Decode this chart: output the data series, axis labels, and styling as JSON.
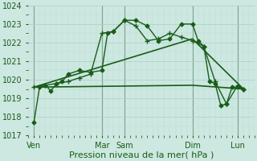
{
  "title": "",
  "xlabel": "Pression niveau de la mer( hPa )",
  "ylabel": "",
  "bg_color": "#cce8e0",
  "grid_major_color": "#aacfc8",
  "grid_minor_color": "#bbdbd4",
  "line_color": "#1a5c1a",
  "ylim": [
    1017,
    1024
  ],
  "yticks": [
    1017,
    1018,
    1019,
    1020,
    1021,
    1022,
    1023,
    1024
  ],
  "xlim": [
    0,
    20
  ],
  "xtick_positions": [
    0.5,
    6.5,
    8.5,
    14.5,
    18.5
  ],
  "xtick_labels": [
    "Ven",
    "Mar",
    "Sam",
    "Dim",
    "Lun"
  ],
  "vline_positions": [
    0.5,
    6.5,
    8.5,
    14.5,
    18.5
  ],
  "series0": {
    "x": [
      0.5,
      1.0,
      1.5,
      2.0,
      2.5,
      3.0,
      3.5,
      4.5,
      5.5,
      6.5,
      7.0,
      7.5,
      8.5,
      9.5,
      10.5,
      11.5,
      12.5,
      13.5,
      14.5,
      15.0,
      15.5,
      16.0,
      16.5,
      17.0,
      17.5,
      18.0,
      18.5,
      19.0
    ],
    "y": [
      1017.7,
      1019.6,
      1019.7,
      1019.4,
      1019.8,
      1019.9,
      1020.3,
      1020.5,
      1020.4,
      1020.5,
      1022.5,
      1022.6,
      1023.2,
      1023.2,
      1022.9,
      1022.1,
      1022.2,
      1023.0,
      1023.0,
      1022.1,
      1021.8,
      1019.9,
      1019.8,
      1018.6,
      1018.7,
      1019.6,
      1019.6,
      1019.5
    ],
    "marker": "D",
    "markersize": 2.5,
    "linewidth": 1.0
  },
  "series1": {
    "x": [
      0.5,
      1.5,
      2.5,
      3.5,
      4.5,
      5.5,
      6.5,
      7.5,
      8.5,
      9.5,
      10.5,
      11.5,
      12.5,
      13.5,
      14.5,
      15.5,
      16.5,
      17.5,
      18.5,
      19.0
    ],
    "y": [
      1019.6,
      1019.7,
      1019.8,
      1019.9,
      1020.1,
      1020.3,
      1022.5,
      1022.6,
      1023.2,
      1022.9,
      1022.1,
      1022.2,
      1022.5,
      1022.3,
      1022.1,
      1021.8,
      1019.9,
      1018.7,
      1019.7,
      1019.5
    ],
    "marker": "+",
    "markersize": 4,
    "linewidth": 1.0
  },
  "series2": {
    "x": [
      0.5,
      14.5,
      19.0
    ],
    "y": [
      1019.6,
      1022.2,
      1019.5
    ],
    "marker": null,
    "linewidth": 1.2
  },
  "series3": {
    "x": [
      0.5,
      14.5,
      19.0
    ],
    "y": [
      1019.6,
      1019.7,
      1019.5
    ],
    "marker": null,
    "linewidth": 1.2
  },
  "xlabel_fontsize": 8,
  "tick_fontsize": 7,
  "label_color": "#1a5c1a"
}
